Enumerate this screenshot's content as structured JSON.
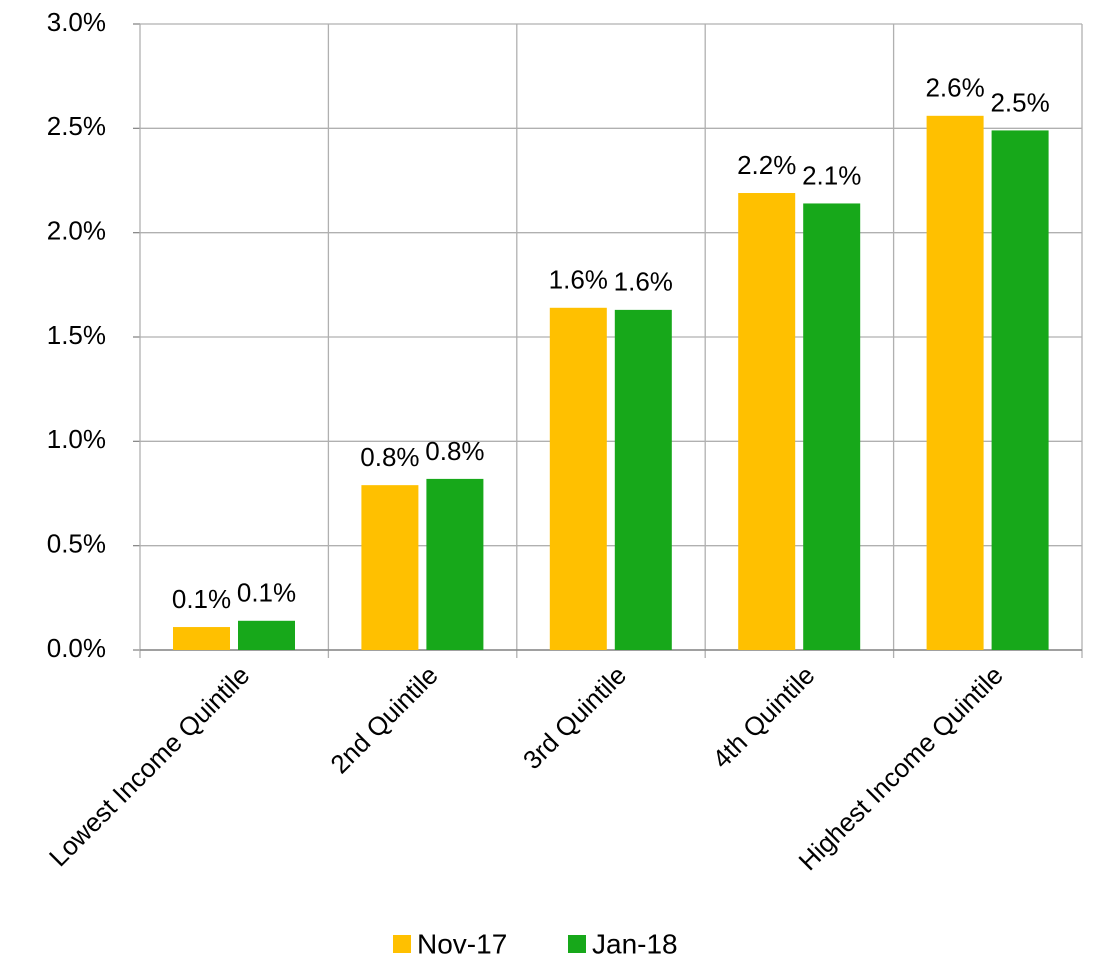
{
  "chart_data": {
    "type": "bar",
    "categories": [
      "Lowest Income Quintile",
      "2nd Quintile",
      "3rd Quintile",
      "4th Quintile",
      "Highest Income Quintile"
    ],
    "series": [
      {
        "name": "Nov-17",
        "color": "#FFC000",
        "values": [
          0.11,
          0.79,
          1.64,
          2.19,
          2.56
        ],
        "value_labels": [
          "0.1%",
          "0.8%",
          "1.6%",
          "2.2%",
          "2.6%"
        ]
      },
      {
        "name": "Jan-18",
        "color": "#17A81A",
        "values": [
          0.14,
          0.82,
          1.63,
          2.14,
          2.49
        ],
        "value_labels": [
          "0.1%",
          "0.8%",
          "1.6%",
          "2.1%",
          "2.5%"
        ]
      }
    ],
    "ylim": [
      0,
      3
    ],
    "yticks": [
      {
        "value": 0,
        "label": "0.0%"
      },
      {
        "value": 0.5,
        "label": "0.5%"
      },
      {
        "value": 1,
        "label": "1.0%"
      },
      {
        "value": 1.5,
        "label": "1.5%"
      },
      {
        "value": 2,
        "label": "2.0%"
      },
      {
        "value": 2.5,
        "label": "2.5%"
      },
      {
        "value": 3,
        "label": "3.0%"
      }
    ],
    "grid": true,
    "legend": "bottom"
  }
}
